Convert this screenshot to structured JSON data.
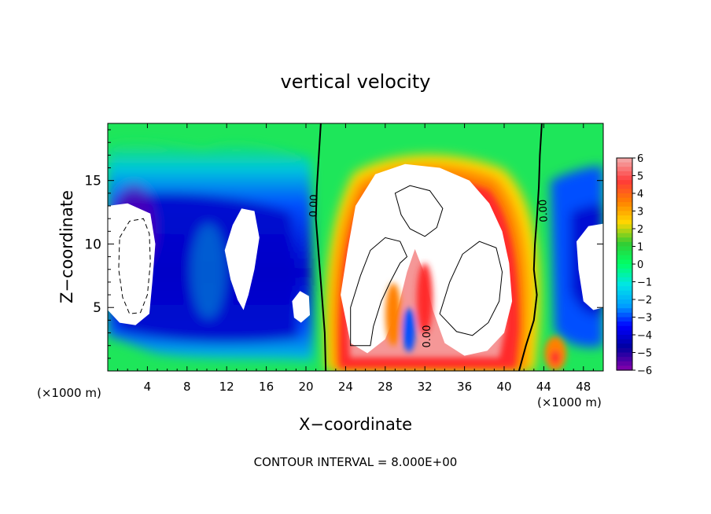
{
  "chart_data": {
    "type": "heatmap",
    "title": "vertical velocity",
    "xlabel": "X−coordinate",
    "ylabel": "Z−coordinate",
    "x_unit_left": "(×1000 m)",
    "x_unit_right": "(×1000 m)",
    "footer": "CONTOUR INTERVAL = 8.000E+00",
    "xlim": [
      0,
      50
    ],
    "ylim": [
      0,
      19.5
    ],
    "x_ticks": [
      4,
      8,
      12,
      16,
      20,
      24,
      28,
      32,
      36,
      40,
      44,
      48
    ],
    "y_ticks": [
      5,
      10,
      15
    ],
    "colorbar": {
      "ticks": [
        "6",
        "5",
        "4",
        "3",
        "2",
        "1",
        "0",
        "−1",
        "−2",
        "−3",
        "−4",
        "−5",
        "−6"
      ],
      "range": [
        -6,
        6
      ],
      "colors": [
        "#f4a3a3",
        "#ff3a3a",
        "#ff8000",
        "#ffd700",
        "#33cc33",
        "#00ff66",
        "#00e6e6",
        "#00a0ff",
        "#0000ff",
        "#0000a0",
        "#7a00aa"
      ]
    },
    "contour_labels": [
      "0.00",
      "0.00",
      "0.00"
    ],
    "contours": [
      {
        "name": "zero-west",
        "level": 0,
        "points": [
          [
            21.5,
            19.5
          ],
          [
            21.3,
            17
          ],
          [
            21.1,
            14.5
          ],
          [
            21.0,
            12
          ],
          [
            21.3,
            9
          ],
          [
            21.6,
            6
          ],
          [
            21.9,
            3
          ],
          [
            22.0,
            0
          ]
        ]
      },
      {
        "name": "zero-east",
        "level": 0,
        "points": [
          [
            43.8,
            19.5
          ],
          [
            43.6,
            17
          ],
          [
            43.5,
            14.5
          ],
          [
            43.3,
            12
          ],
          [
            43.1,
            10
          ],
          [
            43.0,
            8
          ],
          [
            43.3,
            6
          ],
          [
            43.0,
            4
          ],
          [
            42.2,
            2
          ],
          [
            41.5,
            0
          ]
        ]
      },
      {
        "name": "updraft-core-1",
        "level": 8,
        "points": [
          [
            29,
            14
          ],
          [
            30.5,
            14.6
          ],
          [
            32.5,
            14.2
          ],
          [
            33.8,
            12.8
          ],
          [
            33.2,
            11.3
          ],
          [
            32,
            10.6
          ],
          [
            30.5,
            11.2
          ],
          [
            29.6,
            12.3
          ],
          [
            29,
            14
          ]
        ]
      },
      {
        "name": "updraft-core-2",
        "level": 8,
        "points": [
          [
            24.5,
            2
          ],
          [
            24.5,
            5
          ],
          [
            25.5,
            7.5
          ],
          [
            26.5,
            9.5
          ],
          [
            28,
            10.5
          ],
          [
            29.5,
            10.2
          ],
          [
            30.2,
            9
          ],
          [
            29.5,
            8.5
          ],
          [
            28.5,
            7
          ],
          [
            27.6,
            5.5
          ],
          [
            26.8,
            3.5
          ],
          [
            26.5,
            2
          ],
          [
            24.5,
            2
          ]
        ]
      },
      {
        "name": "updraft-core-3",
        "level": 8,
        "points": [
          [
            33.5,
            4.5
          ],
          [
            34.5,
            7
          ],
          [
            35.8,
            9.2
          ],
          [
            37.5,
            10.2
          ],
          [
            39.2,
            9.7
          ],
          [
            39.8,
            7.8
          ],
          [
            39.5,
            5.5
          ],
          [
            38.4,
            3.8
          ],
          [
            36.8,
            2.8
          ],
          [
            35.2,
            3.1
          ],
          [
            33.5,
            4.5
          ]
        ]
      }
    ],
    "downdraft_contours": [
      {
        "name": "dashed-west",
        "points": [
          [
            1.2,
            10.5
          ],
          [
            2.2,
            11.8
          ],
          [
            3.6,
            12
          ],
          [
            4.2,
            10.8
          ],
          [
            4.3,
            8.5
          ],
          [
            4.0,
            6
          ],
          [
            3.3,
            4.6
          ],
          [
            2.2,
            4.5
          ],
          [
            1.5,
            5.8
          ],
          [
            1.1,
            8
          ],
          [
            1.2,
            10.5
          ]
        ]
      }
    ],
    "high_regions": [
      {
        "name": "plume-core",
        "points": [
          [
            23.5,
            6
          ],
          [
            24.2,
            9.5
          ],
          [
            25,
            13
          ],
          [
            27,
            15.5
          ],
          [
            30,
            16.3
          ],
          [
            33.5,
            16
          ],
          [
            36.5,
            15
          ],
          [
            38.5,
            13.2
          ],
          [
            39.8,
            11
          ],
          [
            40.5,
            8.5
          ],
          [
            40.8,
            5.5
          ],
          [
            40,
            3
          ],
          [
            38.3,
            1.6
          ],
          [
            36,
            1.2
          ],
          [
            34,
            2.2
          ],
          [
            32.8,
            4.8
          ],
          [
            31.8,
            8
          ],
          [
            31,
            9.6
          ],
          [
            30.2,
            7.8
          ],
          [
            29.3,
            5
          ],
          [
            28,
            2.5
          ],
          [
            26.2,
            1.4
          ],
          [
            24.5,
            2.2
          ],
          [
            23.5,
            6
          ]
        ]
      }
    ],
    "low_regions": [
      {
        "name": "west-edge-hole",
        "points": [
          [
            0,
            13
          ],
          [
            2,
            13.2
          ],
          [
            4.3,
            12.4
          ],
          [
            4.8,
            10
          ],
          [
            4.5,
            7
          ],
          [
            4.2,
            4.5
          ],
          [
            2.8,
            3.6
          ],
          [
            1.2,
            3.8
          ],
          [
            0,
            4.8
          ]
        ]
      },
      {
        "name": "mid-hole",
        "points": [
          [
            11.8,
            9.5
          ],
          [
            12.6,
            11.5
          ],
          [
            13.5,
            12.8
          ],
          [
            14.8,
            12.6
          ],
          [
            15.3,
            10.5
          ],
          [
            14.8,
            8
          ],
          [
            14.2,
            6
          ],
          [
            13.7,
            4.8
          ],
          [
            13.1,
            5.6
          ],
          [
            12.4,
            7.2
          ],
          [
            11.8,
            9.5
          ]
        ]
      },
      {
        "name": "small-hole",
        "points": [
          [
            18.6,
            5.5
          ],
          [
            19.4,
            6.3
          ],
          [
            20.3,
            5.9
          ],
          [
            20.4,
            4.4
          ],
          [
            19.5,
            3.8
          ],
          [
            18.8,
            4.2
          ],
          [
            18.6,
            5.5
          ]
        ]
      },
      {
        "name": "east-edge-hole",
        "points": [
          [
            50,
            11.6
          ],
          [
            48.5,
            11.4
          ],
          [
            47.3,
            10.2
          ],
          [
            47.5,
            8
          ],
          [
            48,
            5.5
          ],
          [
            49,
            4.8
          ],
          [
            50,
            5
          ]
        ]
      }
    ]
  }
}
